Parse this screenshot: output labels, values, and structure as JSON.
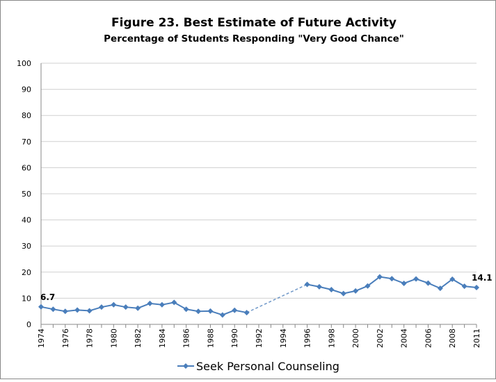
{
  "chart_data": {
    "type": "line",
    "title": "Figure 23.  Best Estimate of Future Activity",
    "subtitle": "Percentage of Students Responding \"Very Good Chance\"",
    "categories": [
      "1974",
      null,
      "1976",
      null,
      "1978",
      null,
      "1980",
      null,
      "1982",
      null,
      "1984",
      null,
      "1986",
      null,
      "1988",
      null,
      "1990",
      null,
      "1992",
      null,
      "1994",
      null,
      "1996",
      null,
      "1998",
      null,
      "2000",
      null,
      "2002",
      null,
      "2004",
      null,
      "2006",
      null,
      "2008",
      null,
      "2011"
    ],
    "series": [
      {
        "name": "Seek Personal Counseling",
        "color": "#4a7ebb",
        "values": [
          6.7,
          5.8,
          5.0,
          5.5,
          5.2,
          6.6,
          7.5,
          6.6,
          6.2,
          8.0,
          7.5,
          8.4,
          5.8,
          5.0,
          5.1,
          3.6,
          5.4,
          4.5,
          null,
          null,
          null,
          null,
          15.3,
          14.4,
          13.3,
          11.8,
          12.8,
          14.7,
          18.2,
          17.5,
          15.7,
          17.4,
          15.8,
          13.8,
          17.3,
          14.6,
          14.1
        ],
        "value_labels": [
          "6.7",
          null,
          null,
          null,
          null,
          null,
          null,
          null,
          null,
          null,
          null,
          null,
          null,
          null,
          null,
          null,
          null,
          null,
          null,
          null,
          null,
          null,
          null,
          null,
          null,
          null,
          null,
          null,
          null,
          null,
          null,
          null,
          null,
          null,
          null,
          null,
          "14.1"
        ]
      }
    ],
    "ylim": [
      0,
      100
    ],
    "yticks": [
      0,
      10,
      20,
      30,
      40,
      50,
      60,
      70,
      80,
      90,
      100
    ],
    "grid": true,
    "bridge_gaps": "dashed",
    "legend": "bottom"
  }
}
